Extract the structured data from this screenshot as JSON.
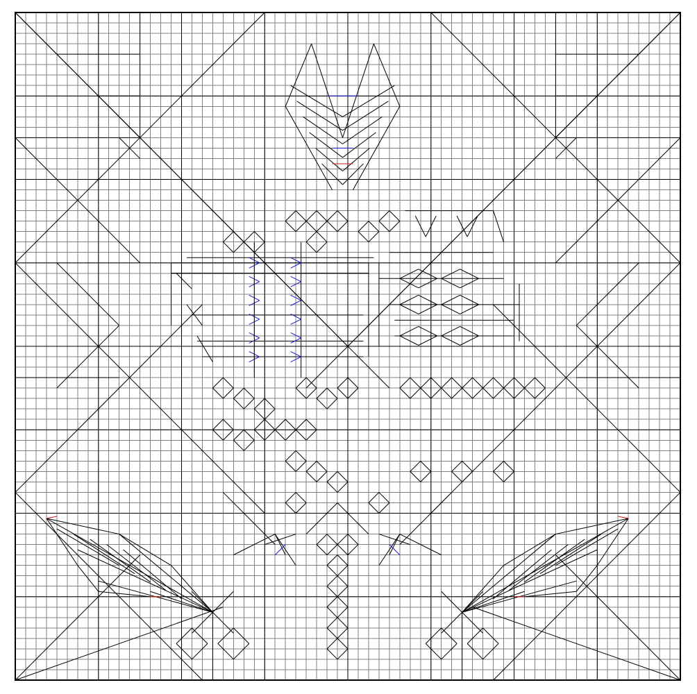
{
  "diagram": {
    "type": "origami-crease-pattern",
    "grid_divisions": 64,
    "colors": {
      "background": "#ffffff",
      "grid": "#808080",
      "crease": "#000000",
      "valley": "#1a1acc",
      "mountain": "#cc1a1a"
    },
    "reference_divisions": [
      8,
      16,
      24,
      32,
      40,
      48,
      56
    ],
    "regions": [
      "corner-top-left",
      "corner-top-right",
      "corner-bottom-left",
      "corner-bottom-right",
      "flap-top-center",
      "body-left-block",
      "body-right-block",
      "leaf-bottom-left",
      "leaf-bottom-right",
      "stem-bottom-center"
    ]
  }
}
